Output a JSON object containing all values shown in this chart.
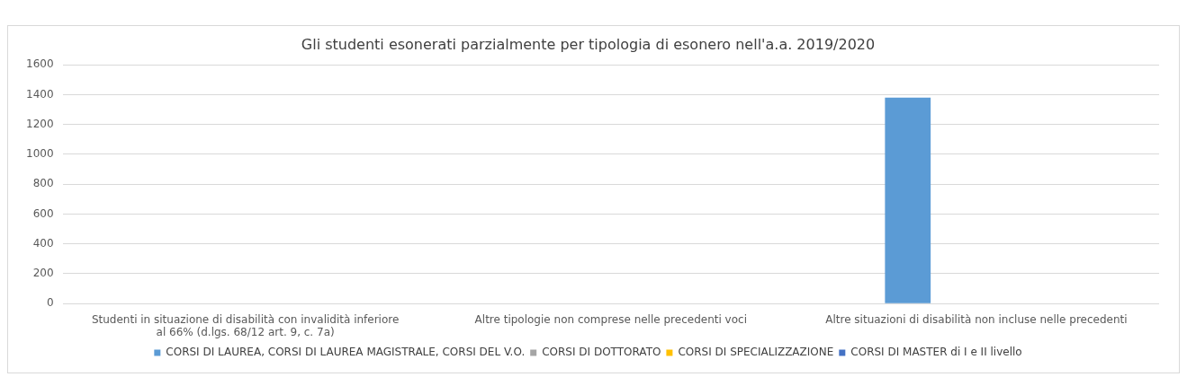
{
  "chart_data": {
    "type": "bar",
    "title": "Gli studenti esonerati parzialmente per tipologia di esonero nell'a.a. 2019/2020",
    "categories": [
      "Studenti in situazione di disabilità con invalidità inferiore al 66% (d.lgs. 68/12 art. 9, c. 7a)",
      "Altre tipologie non comprese nelle precedenti voci",
      "Altre situazioni di disabilità non incluse nelle precedenti"
    ],
    "series": [
      {
        "name": "CORSI DI LAUREA, CORSI DI LAUREA MAGISTRALE, CORSI DEL V.O.",
        "color": "#5b9bd5",
        "values": [
          null,
          null,
          1380
        ]
      },
      {
        "name": "CORSI DI DOTTORATO",
        "color": "#a5a5a5",
        "values": [
          null,
          null,
          null
        ]
      },
      {
        "name": "CORSI DI SPECIALIZZAZIONE",
        "color": "#ffc000",
        "values": [
          null,
          null,
          null
        ]
      },
      {
        "name": "CORSI DI MASTER di I e II livello",
        "color": "#4472c4",
        "values": [
          null,
          null,
          null
        ]
      }
    ],
    "ylim": [
      0,
      1600
    ],
    "yticks": [
      0,
      200,
      400,
      600,
      800,
      1000,
      1200,
      1400,
      1600
    ],
    "grid": "y",
    "legend": "bottom"
  }
}
